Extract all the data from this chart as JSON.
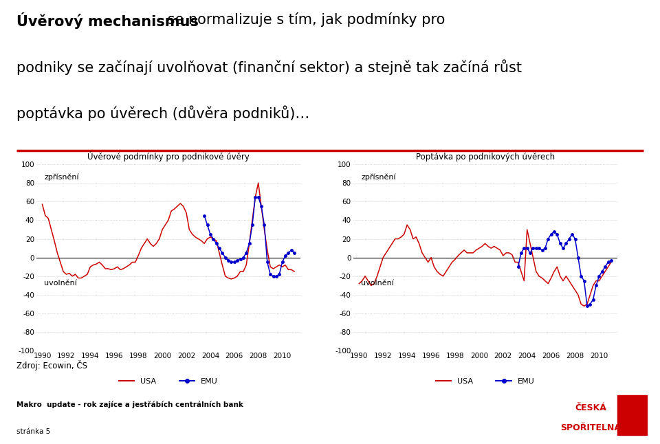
{
  "title_bold": "Úvěrový mechanismus",
  "title_rest": " se normalizuje s tím, jak podmínky pro",
  "title_line2": "podniky se začínají uvolňovat (finanční sektor) a stejně tak začíná růst",
  "title_line3": "poptávka po úvěrech (důvěra podniků)…",
  "chart1_title": "Úvěrové podmínky pro podnikové úvěry",
  "chart2_title": "Poptávka po podnikových úvěrech",
  "label_zprisneni": "zpřísnění",
  "label_uvolneni": "uvolnění",
  "legend_usa": "USA",
  "legend_emu": "EMU",
  "source_text": "Zdroj: Ecowin, ČS",
  "footer_text": "Makro  update - rok zajíce a jestřábích centrálních bank",
  "page_text": "stránka 5",
  "ylim": [
    -100,
    100
  ],
  "yticks": [
    -100,
    -80,
    -60,
    -40,
    -20,
    0,
    20,
    40,
    60,
    80,
    100
  ],
  "xticks": [
    1990,
    1992,
    1994,
    1996,
    1998,
    2000,
    2002,
    2004,
    2006,
    2008,
    2010
  ],
  "color_usa": "#CC0000",
  "color_emu": "#0000CC",
  "bg_color": "#FFFFFF",
  "header_line_color": "#CC0000",
  "footer_bg_color": "#C5D9E8",
  "chart1_usa_x": [
    1990.0,
    1990.25,
    1990.5,
    1990.75,
    1991.0,
    1991.25,
    1991.5,
    1991.75,
    1992.0,
    1992.25,
    1992.5,
    1992.75,
    1993.0,
    1993.25,
    1993.5,
    1993.75,
    1994.0,
    1994.25,
    1994.5,
    1994.75,
    1995.0,
    1995.25,
    1995.5,
    1995.75,
    1996.0,
    1996.25,
    1996.5,
    1996.75,
    1997.0,
    1997.25,
    1997.5,
    1997.75,
    1998.0,
    1998.25,
    1998.5,
    1998.75,
    1999.0,
    1999.25,
    1999.5,
    1999.75,
    2000.0,
    2000.25,
    2000.5,
    2000.75,
    2001.0,
    2001.25,
    2001.5,
    2001.75,
    2002.0,
    2002.25,
    2002.5,
    2002.75,
    2003.0,
    2003.25,
    2003.5,
    2003.75,
    2004.0,
    2004.25,
    2004.5,
    2004.75,
    2005.0,
    2005.25,
    2005.5,
    2005.75,
    2006.0,
    2006.25,
    2006.5,
    2006.75,
    2007.0,
    2007.25,
    2007.5,
    2007.75,
    2008.0,
    2008.25,
    2008.5,
    2008.75,
    2009.0,
    2009.25,
    2009.5,
    2009.75,
    2010.0,
    2010.25,
    2010.5,
    2010.75,
    2011.0
  ],
  "chart1_usa_y": [
    57,
    45,
    42,
    30,
    18,
    5,
    -5,
    -15,
    -18,
    -17,
    -20,
    -18,
    -22,
    -22,
    -20,
    -18,
    -10,
    -8,
    -7,
    -5,
    -8,
    -12,
    -12,
    -13,
    -12,
    -10,
    -13,
    -12,
    -10,
    -8,
    -5,
    -5,
    2,
    10,
    15,
    20,
    15,
    12,
    15,
    20,
    30,
    35,
    40,
    50,
    52,
    55,
    58,
    55,
    48,
    30,
    25,
    22,
    20,
    18,
    15,
    20,
    22,
    20,
    18,
    5,
    -8,
    -20,
    -22,
    -23,
    -22,
    -20,
    -15,
    -15,
    -8,
    15,
    40,
    65,
    80,
    55,
    30,
    8,
    -10,
    -12,
    -10,
    -8,
    -10,
    -8,
    -13,
    -13,
    -15
  ],
  "chart1_emu_x": [
    2003.5,
    2003.75,
    2004.0,
    2004.25,
    2004.5,
    2004.75,
    2005.0,
    2005.25,
    2005.5,
    2005.75,
    2006.0,
    2006.25,
    2006.5,
    2006.75,
    2007.0,
    2007.25,
    2007.5,
    2007.75,
    2008.0,
    2008.25,
    2008.5,
    2008.75,
    2009.0,
    2009.25,
    2009.5,
    2009.75,
    2010.0,
    2010.25,
    2010.5,
    2010.75,
    2011.0
  ],
  "chart1_emu_y": [
    45,
    35,
    25,
    20,
    15,
    10,
    5,
    0,
    -3,
    -5,
    -5,
    -3,
    -2,
    0,
    5,
    15,
    35,
    65,
    65,
    55,
    35,
    -5,
    -18,
    -20,
    -20,
    -18,
    -5,
    2,
    5,
    8,
    5
  ],
  "chart2_usa_x": [
    1990.0,
    1990.25,
    1990.5,
    1990.75,
    1991.0,
    1991.25,
    1991.5,
    1991.75,
    1992.0,
    1992.25,
    1992.5,
    1992.75,
    1993.0,
    1993.25,
    1993.5,
    1993.75,
    1994.0,
    1994.25,
    1994.5,
    1994.75,
    1995.0,
    1995.25,
    1995.5,
    1995.75,
    1996.0,
    1996.25,
    1996.5,
    1996.75,
    1997.0,
    1997.25,
    1997.5,
    1997.75,
    1998.0,
    1998.25,
    1998.5,
    1998.75,
    1999.0,
    1999.25,
    1999.5,
    1999.75,
    2000.0,
    2000.25,
    2000.5,
    2000.75,
    2001.0,
    2001.25,
    2001.5,
    2001.75,
    2002.0,
    2002.25,
    2002.5,
    2002.75,
    2003.0,
    2003.25,
    2003.5,
    2003.75,
    2004.0,
    2004.25,
    2004.5,
    2004.75,
    2005.0,
    2005.25,
    2005.5,
    2005.75,
    2006.0,
    2006.25,
    2006.5,
    2006.75,
    2007.0,
    2007.25,
    2007.5,
    2007.75,
    2008.0,
    2008.25,
    2008.5,
    2008.75,
    2009.0,
    2009.25,
    2009.5,
    2009.75,
    2010.0,
    2010.25,
    2010.5,
    2010.75,
    2011.0
  ],
  "chart2_usa_y": [
    -28,
    -25,
    -20,
    -25,
    -30,
    -28,
    -20,
    -10,
    0,
    5,
    10,
    15,
    20,
    20,
    22,
    25,
    35,
    30,
    20,
    22,
    15,
    5,
    0,
    -5,
    0,
    -10,
    -15,
    -18,
    -20,
    -15,
    -10,
    -5,
    -2,
    2,
    5,
    8,
    5,
    5,
    5,
    8,
    10,
    12,
    15,
    12,
    10,
    12,
    10,
    8,
    2,
    5,
    5,
    3,
    -5,
    -5,
    -15,
    -25,
    30,
    15,
    0,
    -15,
    -20,
    -22,
    -25,
    -28,
    -22,
    -15,
    -10,
    -20,
    -25,
    -20,
    -25,
    -30,
    -35,
    -40,
    -50,
    -52,
    -50,
    -40,
    -30,
    -25,
    -25,
    -20,
    -15,
    -10,
    -5
  ],
  "chart2_emu_x": [
    2003.25,
    2003.5,
    2003.75,
    2004.0,
    2004.25,
    2004.5,
    2004.75,
    2005.0,
    2005.25,
    2005.5,
    2005.75,
    2006.0,
    2006.25,
    2006.5,
    2006.75,
    2007.0,
    2007.25,
    2007.5,
    2007.75,
    2008.0,
    2008.25,
    2008.5,
    2008.75,
    2009.0,
    2009.25,
    2009.5,
    2009.75,
    2010.0,
    2010.25,
    2010.5,
    2010.75,
    2011.0
  ],
  "chart2_emu_y": [
    -10,
    5,
    10,
    10,
    5,
    10,
    10,
    10,
    8,
    10,
    20,
    25,
    28,
    25,
    15,
    10,
    15,
    20,
    25,
    20,
    0,
    -20,
    -25,
    -52,
    -50,
    -45,
    -30,
    -20,
    -15,
    -10,
    -5,
    -3
  ]
}
